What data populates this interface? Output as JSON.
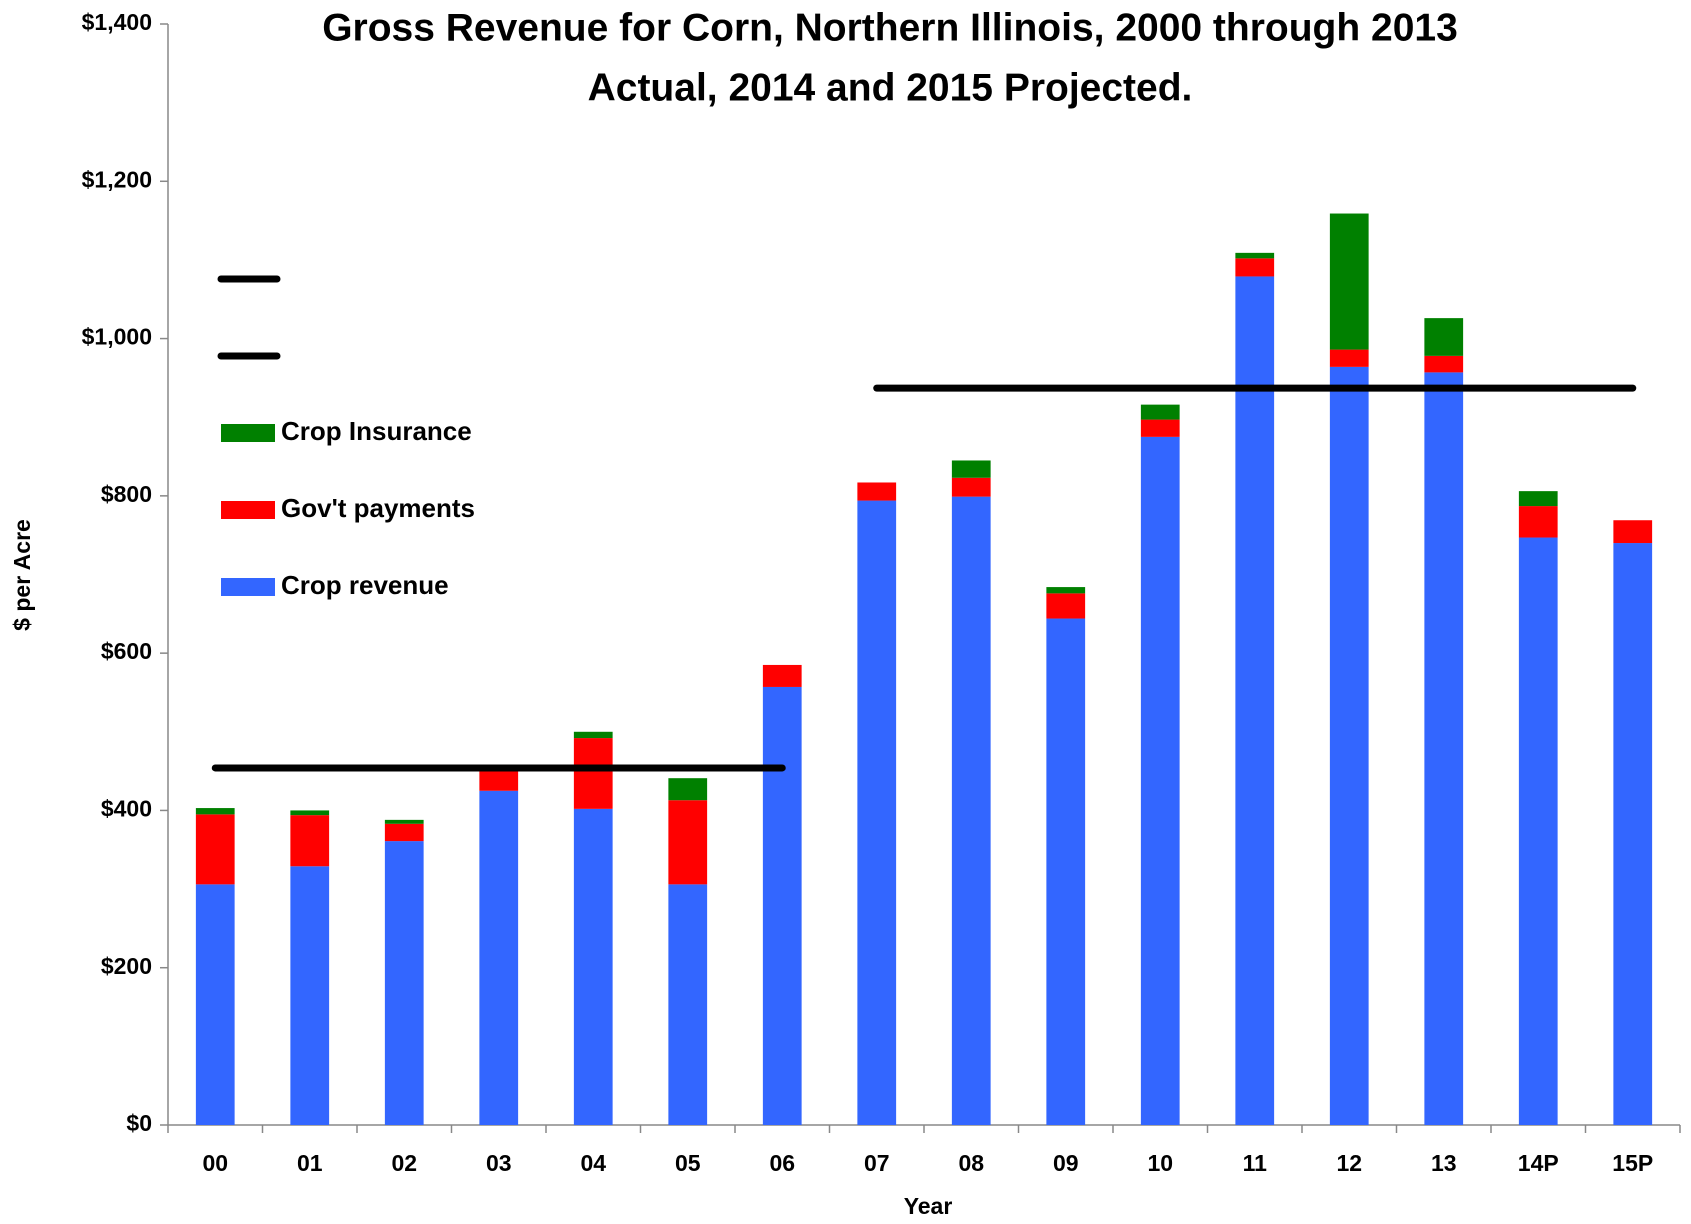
{
  "chart_data": {
    "type": "bar",
    "stacked": true,
    "title": [
      "Gross Revenue for Corn, Northern Illinois, 2000 through 2013",
      "Actual, 2014 and 2015 Projected."
    ],
    "xlabel": "Year",
    "ylabel": "$ per Acre",
    "categories": [
      "00",
      "01",
      "02",
      "03",
      "04",
      "05",
      "06",
      "07",
      "08",
      "09",
      "10",
      "11",
      "12",
      "13",
      "14P",
      "15P"
    ],
    "series": [
      {
        "name": "Crop revenue",
        "color": "#3366ff",
        "values": [
          306,
          329,
          361,
          425,
          402,
          306,
          557,
          794,
          799,
          644,
          875,
          1079,
          964,
          957,
          747,
          740
        ]
      },
      {
        "name": "Gov't payments",
        "color": "#ff0000",
        "values": [
          89,
          65,
          22,
          30,
          90,
          107,
          28,
          23,
          24,
          32,
          22,
          23,
          22,
          21,
          40,
          29
        ]
      },
      {
        "name": "Crop Insurance",
        "color": "#008000",
        "values": [
          8,
          6,
          5,
          0,
          8,
          28,
          0,
          0,
          22,
          8,
          19,
          7,
          173,
          48,
          19,
          0
        ]
      },
      {
        "type": "line",
        "color": "#000000",
        "values": [
          454,
          454,
          454,
          454,
          454,
          454,
          454,
          null,
          null,
          null,
          null,
          null,
          null,
          null,
          null,
          null
        ]
      },
      {
        "type": "line",
        "color": "#000000",
        "values": [
          null,
          null,
          null,
          null,
          null,
          null,
          null,
          937,
          937,
          937,
          937,
          937,
          937,
          937,
          937,
          937
        ]
      }
    ],
    "ylim": [
      0,
      1400
    ],
    "yticks": [
      {
        "value": 0,
        "label": "$0"
      },
      {
        "value": 200,
        "label": "$200"
      },
      {
        "value": 400,
        "label": "$400"
      },
      {
        "value": 600,
        "label": "$600"
      },
      {
        "value": 800,
        "label": "$800"
      },
      {
        "value": 1000,
        "label": "$1,000"
      },
      {
        "value": 1200,
        "label": "$1,200"
      },
      {
        "value": 1400,
        "label": "$1,400"
      }
    ],
    "grid": false
  }
}
